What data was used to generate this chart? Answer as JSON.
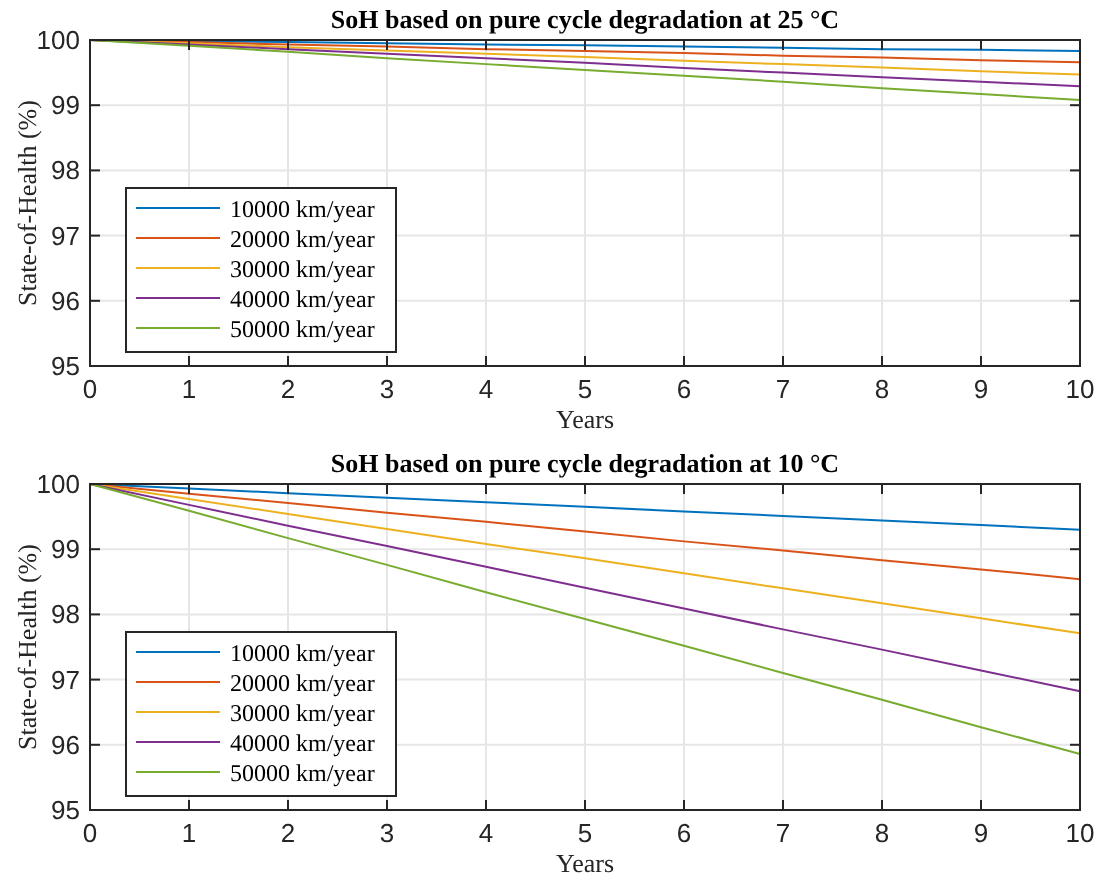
{
  "chart_data": [
    {
      "type": "line",
      "title": "SoH based on pure cycle degradation at 25 °C",
      "xlabel": "Years",
      "ylabel": "State-of-Health (%)",
      "x": [
        0,
        1,
        2,
        3,
        4,
        5,
        6,
        7,
        8,
        9,
        10
      ],
      "series": [
        {
          "name": "10000 km/year",
          "color": "#0072bd",
          "values": [
            100,
            99.98,
            99.97,
            99.95,
            99.93,
            99.92,
            99.9,
            99.88,
            99.86,
            99.85,
            99.83
          ]
        },
        {
          "name": "20000 km/year",
          "color": "#d95319",
          "values": [
            100,
            99.97,
            99.93,
            99.9,
            99.86,
            99.83,
            99.8,
            99.76,
            99.73,
            99.69,
            99.66
          ]
        },
        {
          "name": "30000 km/year",
          "color": "#edb120",
          "values": [
            100,
            99.95,
            99.89,
            99.84,
            99.79,
            99.74,
            99.68,
            99.63,
            99.58,
            99.52,
            99.47
          ]
        },
        {
          "name": "40000 km/year",
          "color": "#7e2f8e",
          "values": [
            100,
            99.93,
            99.86,
            99.79,
            99.72,
            99.65,
            99.57,
            99.5,
            99.43,
            99.36,
            99.29
          ]
        },
        {
          "name": "50000 km/year",
          "color": "#77ac30",
          "values": [
            100,
            99.91,
            99.82,
            99.72,
            99.63,
            99.54,
            99.45,
            99.36,
            99.26,
            99.17,
            99.08
          ]
        }
      ],
      "xlim": [
        0,
        10
      ],
      "xticks": [
        0,
        1,
        2,
        3,
        4,
        5,
        6,
        7,
        8,
        9,
        10
      ],
      "ylim": [
        95,
        100
      ],
      "yticks": [
        95,
        96,
        97,
        98,
        99,
        100
      ],
      "grid": true,
      "legend": "bottom left",
      "line_style": "solid",
      "marker": "none"
    },
    {
      "type": "line",
      "title": "SoH based on pure cycle degradation at 10 °C",
      "xlabel": "Years",
      "ylabel": "State-of-Health (%)",
      "x": [
        0,
        1,
        2,
        3,
        4,
        5,
        6,
        7,
        8,
        9,
        10
      ],
      "series": [
        {
          "name": "10000 km/year",
          "color": "#0072bd",
          "values": [
            100,
            99.93,
            99.86,
            99.79,
            99.72,
            99.65,
            99.58,
            99.51,
            99.44,
            99.37,
            99.3
          ]
        },
        {
          "name": "20000 km/year",
          "color": "#d95319",
          "values": [
            100,
            99.85,
            99.71,
            99.56,
            99.42,
            99.27,
            99.12,
            98.98,
            98.83,
            98.69,
            98.54
          ]
        },
        {
          "name": "30000 km/year",
          "color": "#edb120",
          "values": [
            100,
            99.77,
            99.54,
            99.31,
            99.08,
            98.86,
            98.63,
            98.4,
            98.17,
            97.94,
            97.71
          ]
        },
        {
          "name": "40000 km/year",
          "color": "#7e2f8e",
          "values": [
            100,
            99.68,
            99.36,
            99.05,
            98.73,
            98.41,
            98.09,
            97.77,
            97.46,
            97.14,
            96.82
          ]
        },
        {
          "name": "50000 km/year",
          "color": "#77ac30",
          "values": [
            100,
            99.59,
            99.17,
            98.76,
            98.34,
            97.93,
            97.52,
            97.1,
            96.69,
            96.27,
            95.86
          ]
        }
      ],
      "xlim": [
        0,
        10
      ],
      "xticks": [
        0,
        1,
        2,
        3,
        4,
        5,
        6,
        7,
        8,
        9,
        10
      ],
      "ylim": [
        95,
        100
      ],
      "yticks": [
        95,
        96,
        97,
        98,
        99,
        100
      ],
      "grid": true,
      "legend": "bottom left",
      "line_style": "solid",
      "marker": "none"
    }
  ]
}
